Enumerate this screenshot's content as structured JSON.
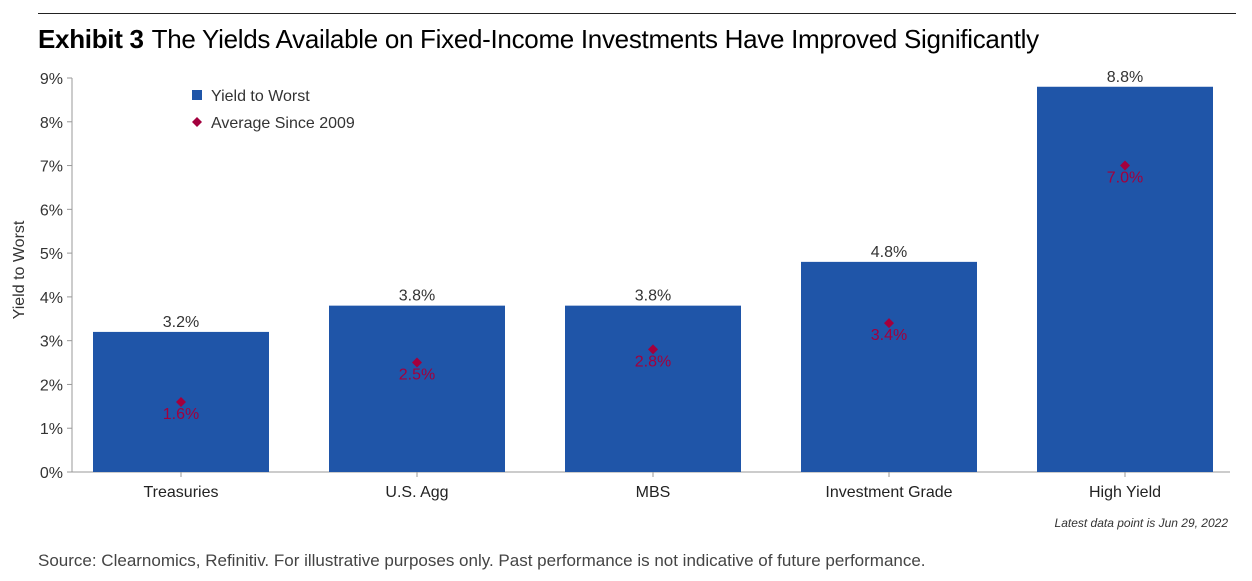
{
  "header": {
    "exhibit_label": "Exhibit 3",
    "title": "The Yields Available on Fixed-Income Investments Have Improved Significantly"
  },
  "footnote": "Latest data point is Jun 29, 2022",
  "source": "Source: Clearnomics, Refinitiv. For illustrative purposes only. Past performance is not indicative of future performance.",
  "colors": {
    "bar": "#1f55a8",
    "marker": "#a3003d",
    "axis": "#999999"
  },
  "chart_data": {
    "type": "bar",
    "ylabel": "Yield to Worst",
    "ylim": [
      0,
      9
    ],
    "yticks": [
      "0%",
      "1%",
      "2%",
      "3%",
      "4%",
      "5%",
      "6%",
      "7%",
      "8%",
      "9%"
    ],
    "grid": false,
    "legend_position": "top-left",
    "categories": [
      "Treasuries",
      "U.S. Agg",
      "MBS",
      "Investment Grade",
      "High Yield"
    ],
    "series": [
      {
        "name": "Yield to Worst",
        "kind": "bar",
        "values": [
          3.2,
          3.8,
          3.8,
          4.8,
          8.8
        ],
        "labels": [
          "3.2%",
          "3.8%",
          "3.8%",
          "4.8%",
          "8.8%"
        ]
      },
      {
        "name": "Average Since 2009",
        "kind": "diamond",
        "values": [
          1.6,
          2.5,
          2.8,
          3.4,
          7.0
        ],
        "labels": [
          "1.6%",
          "2.5%",
          "2.8%",
          "3.4%",
          "7.0%"
        ]
      }
    ]
  }
}
